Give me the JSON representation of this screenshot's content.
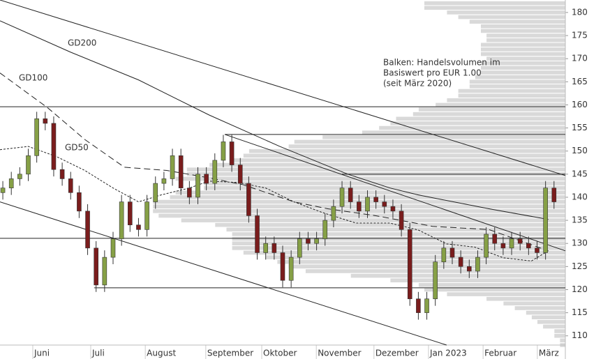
{
  "chart_data": {
    "type": "candlestick",
    "xlim": [
      0,
      200
    ],
    "ylim": [
      108,
      182.7
    ],
    "yticks": [
      110,
      115,
      120,
      125,
      130,
      135,
      140,
      145,
      150,
      155,
      160,
      165,
      170,
      175,
      180
    ],
    "xticks": [
      {
        "value": 11.6,
        "label": "Juni"
      },
      {
        "value": 32.1,
        "label": "Juli"
      },
      {
        "value": 51.4,
        "label": "August"
      },
      {
        "value": 72.8,
        "label": "September"
      },
      {
        "value": 92.6,
        "label": "Oktober"
      },
      {
        "value": 111.9,
        "label": "November"
      },
      {
        "value": 132.3,
        "label": "Dezember"
      },
      {
        "value": 151.6,
        "label": "Jan 2023"
      },
      {
        "value": 170.9,
        "label": "Februar"
      },
      {
        "value": 190.1,
        "label": "März"
      }
    ],
    "up_color": "#86a046",
    "down_color": "#7a1d1d",
    "ohlc": {
      "x": [
        1,
        4,
        7,
        10,
        13,
        16,
        19,
        22,
        25,
        28,
        31,
        34,
        37,
        40,
        43,
        46,
        49,
        52,
        55,
        58,
        61,
        64,
        67,
        70,
        73,
        76,
        79,
        82,
        85,
        88,
        91,
        94,
        97,
        100,
        103,
        106,
        109,
        112,
        115,
        118,
        121,
        124,
        127,
        130,
        133,
        136,
        139,
        142,
        145,
        148,
        151,
        154,
        157,
        160,
        163,
        166,
        169,
        172,
        175,
        178,
        181,
        184,
        187,
        190,
        193,
        196
      ],
      "open": [
        141,
        142,
        144,
        145,
        149,
        157,
        156,
        146,
        144,
        141,
        137,
        129,
        121,
        127,
        131,
        139,
        134,
        133,
        139,
        143,
        144,
        149,
        142,
        140,
        145,
        143,
        148,
        152,
        147,
        143,
        136,
        128,
        130,
        128,
        122,
        127,
        131,
        130,
        131,
        135,
        138,
        142,
        139,
        137,
        140,
        139,
        138,
        137,
        133,
        118,
        115,
        118,
        126,
        129,
        127,
        125,
        124,
        127,
        132,
        130,
        129,
        131,
        130,
        129,
        128,
        142
      ],
      "high": [
        143.5,
        145.5,
        146.5,
        150.5,
        158.5,
        158.5,
        157.5,
        147.5,
        145.5,
        142.5,
        138.5,
        130.5,
        128.5,
        132.5,
        140.5,
        140.5,
        135.5,
        140.5,
        144.5,
        145.5,
        150.5,
        150.5,
        143.5,
        146.5,
        146.5,
        149.5,
        153.5,
        153.5,
        148.5,
        144.5,
        137.5,
        131.5,
        131.5,
        129.5,
        128.5,
        132.5,
        132.5,
        132.5,
        136.5,
        139.5,
        143.5,
        143.5,
        140.5,
        141.5,
        141.5,
        140.5,
        139.5,
        138.5,
        134.5,
        119.5,
        119.5,
        127.5,
        130.5,
        130.5,
        128.5,
        126.5,
        128.5,
        133.5,
        133.5,
        131.5,
        132.5,
        132.5,
        131.5,
        130.5,
        143.5,
        143.5
      ],
      "low": [
        139.5,
        140.5,
        142.5,
        143.5,
        147.5,
        154.5,
        144.5,
        142.5,
        139.5,
        135.5,
        127.5,
        119.5,
        119.5,
        125.5,
        129.5,
        132.5,
        131.5,
        131.5,
        137.5,
        141.5,
        142.5,
        140.5,
        138.5,
        138.5,
        141.5,
        141.5,
        146.5,
        145.5,
        141.5,
        134.5,
        126.5,
        126.5,
        126.5,
        120.5,
        120.5,
        125.5,
        128.5,
        128.5,
        129.5,
        133.5,
        136.5,
        137.5,
        135.5,
        135.5,
        137.5,
        136.5,
        135.5,
        131.5,
        116.5,
        113.5,
        113.5,
        116.5,
        124.5,
        125.5,
        123.5,
        122.5,
        122.5,
        125.5,
        128.5,
        127.5,
        127.5,
        128.5,
        127.5,
        126.5,
        126.5,
        137.5
      ],
      "close": [
        142,
        144,
        145,
        149,
        157,
        156,
        146,
        144,
        141,
        137,
        129,
        121,
        127,
        131,
        139,
        134,
        133,
        139,
        143,
        144,
        149,
        142,
        140,
        145,
        143,
        148,
        152,
        147,
        143,
        136,
        128,
        130,
        128,
        122,
        127,
        131,
        130,
        131,
        135,
        138,
        142,
        139,
        137,
        140,
        139,
        138,
        137,
        133,
        118,
        115,
        118,
        126,
        129,
        127,
        125,
        124,
        127,
        132,
        130,
        129,
        131,
        130,
        129,
        128,
        142,
        139
      ]
    },
    "moving_averages": [
      {
        "name": "GD200",
        "dash": "none",
        "x": [
          0,
          25,
          49,
          74,
          99,
          123,
          138,
          148,
          173,
          194
        ],
        "values": [
          178.2,
          171.4,
          165.4,
          157.8,
          151.0,
          145.0,
          142.0,
          140.5,
          137.5,
          135.2
        ]
      },
      {
        "name": "GD100",
        "dash": "9 5",
        "x": [
          0,
          17,
          30,
          44,
          59,
          74,
          86,
          104,
          116,
          133,
          153,
          173,
          194
        ],
        "values": [
          166.9,
          159.3,
          152.5,
          146.5,
          145.8,
          144.2,
          142.7,
          139.0,
          137.5,
          136.0,
          133.7,
          133.0,
          128.4
        ]
      },
      {
        "name": "GD50",
        "dash": "3 2",
        "x": [
          0,
          10,
          20,
          30,
          40,
          49,
          57,
          67,
          74,
          84,
          94,
          104,
          114,
          126,
          138,
          148,
          158,
          168,
          178,
          188,
          194
        ],
        "values": [
          150.3,
          151.0,
          148.8,
          145.8,
          142.0,
          139.0,
          140.5,
          142.0,
          143.5,
          143.2,
          142.0,
          139.0,
          136.7,
          134.4,
          134.4,
          132.9,
          129.9,
          129.2,
          126.9,
          126.2,
          128.4
        ]
      }
    ],
    "trend_lines": [
      {
        "x": [
          0,
          200
        ],
        "values": [
          182.7,
          144.7
        ]
      },
      {
        "x": [
          0,
          158
        ],
        "values": [
          139.0,
          108.0
        ]
      },
      {
        "x": [
          79.5,
          200
        ],
        "values": [
          153.6,
          128.4
        ]
      },
      {
        "x": [
          0,
          200
        ],
        "values": [
          159.6,
          159.6
        ]
      },
      {
        "x": [
          79.5,
          200
        ],
        "values": [
          153.6,
          153.6
        ]
      },
      {
        "x": [
          121,
          200
        ],
        "values": [
          145.0,
          145.0
        ]
      },
      {
        "x": [
          0,
          200
        ],
        "values": [
          131.1,
          131.1
        ]
      },
      {
        "x": [
          33.3,
          200
        ],
        "values": [
          120.4,
          120.4
        ]
      }
    ],
    "volume_profile": {
      "xlim": [
        0,
        100
      ],
      "color": "#d9d9d9",
      "levels": [
        182,
        181,
        180,
        179,
        178,
        177,
        176,
        175,
        174,
        173,
        172,
        171,
        170,
        169,
        168,
        167,
        166,
        165,
        164,
        163,
        162,
        161,
        160,
        159,
        158,
        157,
        156,
        155,
        154,
        153,
        152,
        151,
        150,
        149,
        148,
        147,
        146,
        145,
        144,
        143,
        142,
        141,
        140,
        139,
        138,
        137,
        136,
        135,
        134,
        133,
        132,
        131,
        130,
        129,
        128,
        127,
        126,
        125,
        124,
        123,
        122,
        121,
        120,
        119,
        118,
        117,
        116,
        115,
        114,
        113,
        112,
        111,
        110,
        109,
        108
      ],
      "values": [
        25,
        25,
        21,
        19,
        17,
        15,
        15,
        14,
        14,
        15,
        15,
        15,
        14,
        15,
        15,
        15,
        16,
        17,
        17,
        19,
        19,
        21,
        23,
        26,
        27,
        30,
        31,
        33,
        36,
        43,
        48,
        49,
        56,
        57,
        59,
        63,
        67,
        67,
        69,
        64,
        64,
        69,
        70,
        73,
        73,
        73,
        72,
        68,
        62,
        60,
        59,
        59,
        59,
        59,
        57,
        53,
        51,
        49,
        46,
        38,
        31,
        26,
        25,
        21,
        14,
        11,
        9,
        7,
        6,
        5,
        4,
        2,
        2,
        1,
        1
      ]
    },
    "annotation": [
      "Balken: Handelsvolumen im",
      "Basiswert pro EUR 1.00",
      "(seit März 2020)"
    ]
  }
}
